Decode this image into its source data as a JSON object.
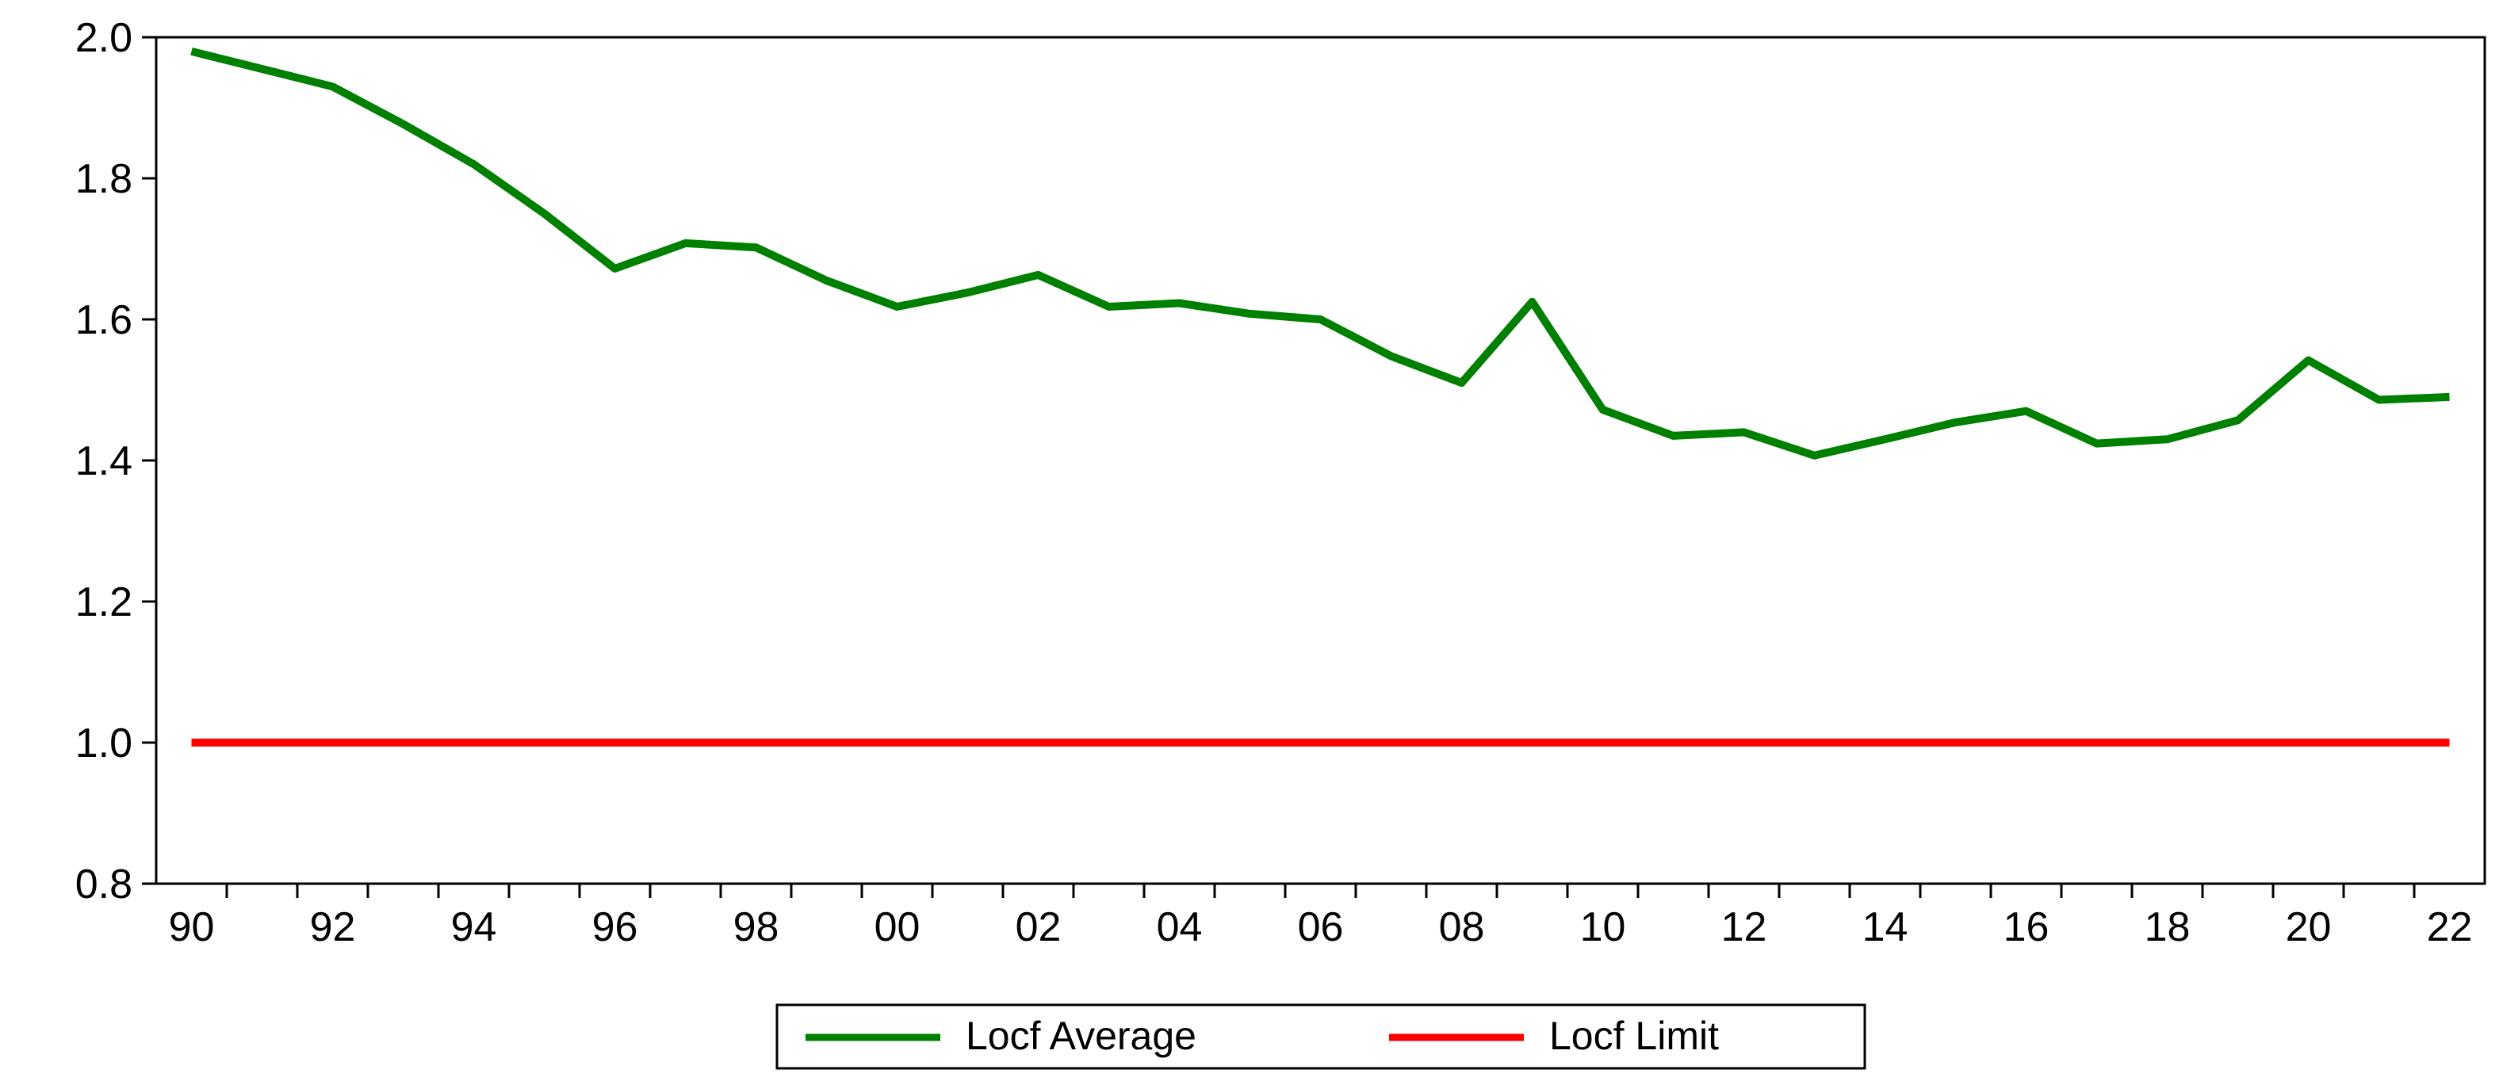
{
  "chart_data": {
    "type": "line",
    "title": "",
    "xlabel": "",
    "ylabel": "",
    "x": [
      1990,
      1991,
      1992,
      1993,
      1994,
      1995,
      1996,
      1997,
      1998,
      1999,
      2000,
      2001,
      2002,
      2003,
      2004,
      2005,
      2006,
      2007,
      2008,
      2009,
      2010,
      2011,
      2012,
      2013,
      2014,
      2015,
      2016,
      2017,
      2018,
      2019,
      2020,
      2021,
      2022
    ],
    "xlim": [
      1989.5,
      2022.5
    ],
    "ylim": [
      0.8,
      2.0
    ],
    "x_tick_labels": [
      "90",
      "92",
      "94",
      "96",
      "98",
      "00",
      "02",
      "04",
      "06",
      "08",
      "10",
      "12",
      "14",
      "16",
      "18",
      "20",
      "22"
    ],
    "y_tick_labels": [
      "0.8",
      "1.0",
      "1.2",
      "1.4",
      "1.6",
      "1.8",
      "2.0"
    ],
    "y_ticks": [
      0.8,
      1.0,
      1.2,
      1.4,
      1.6,
      1.8,
      2.0
    ],
    "grid": false,
    "legend_position": "bottom-center",
    "series": [
      {
        "name": "Locf Average",
        "color": "#008000",
        "values": [
          1.98,
          1.955,
          1.93,
          1.877,
          1.82,
          1.75,
          1.672,
          1.708,
          1.702,
          1.655,
          1.618,
          1.638,
          1.663,
          1.618,
          1.623,
          1.608,
          1.6,
          1.548,
          1.51,
          1.625,
          1.472,
          1.435,
          1.44,
          1.407,
          1.43,
          1.454,
          1.47,
          1.424,
          1.43,
          1.457,
          1.542,
          1.486,
          1.49
        ]
      },
      {
        "name": "Locf Limit",
        "color": "#ff0000",
        "values": [
          1.0,
          1.0,
          1.0,
          1.0,
          1.0,
          1.0,
          1.0,
          1.0,
          1.0,
          1.0,
          1.0,
          1.0,
          1.0,
          1.0,
          1.0,
          1.0,
          1.0,
          1.0,
          1.0,
          1.0,
          1.0,
          1.0,
          1.0,
          1.0,
          1.0,
          1.0,
          1.0,
          1.0,
          1.0,
          1.0,
          1.0,
          1.0,
          1.0
        ]
      }
    ]
  }
}
